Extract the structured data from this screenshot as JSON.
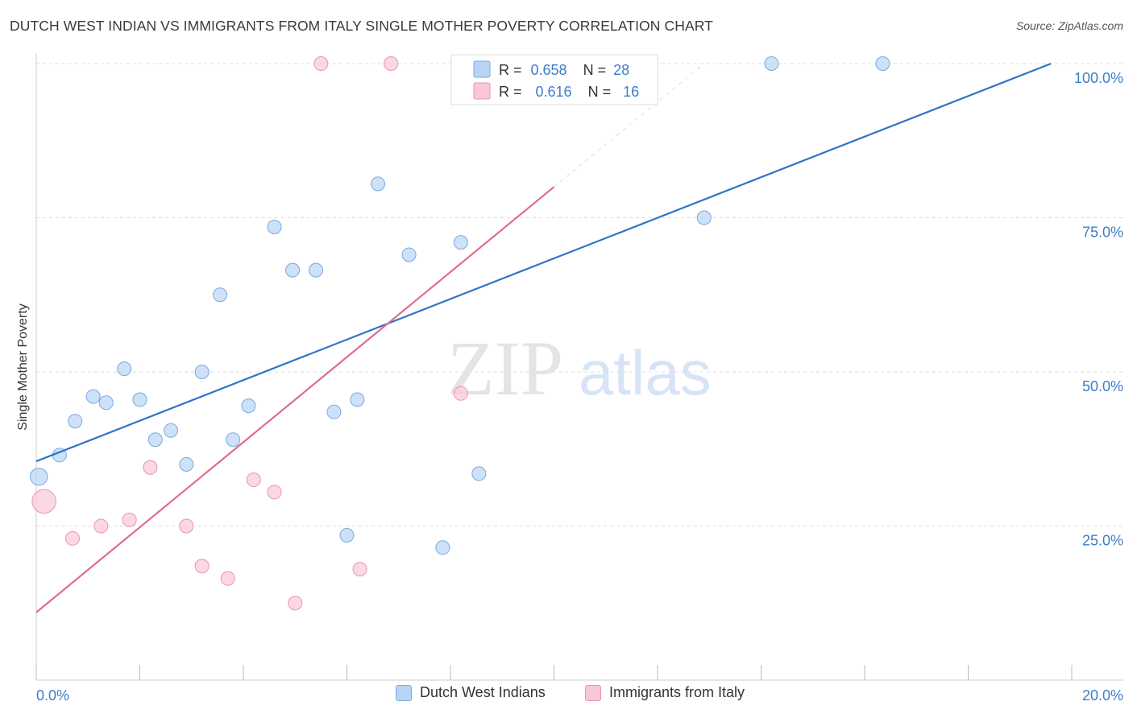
{
  "title": "DUTCH WEST INDIAN VS IMMIGRANTS FROM ITALY SINGLE MOTHER POVERTY CORRELATION CHART",
  "source": "Source: ZipAtlas.com",
  "watermark": {
    "zip": "ZIP",
    "atlas": "atlas"
  },
  "colors": {
    "blue_fill": "#b8d4f5",
    "blue_stroke": "#7aa9df",
    "blue_line": "#2f74c8",
    "pink_fill": "#f9c7d5",
    "pink_stroke": "#e994ae",
    "pink_line": "#e06b93",
    "value_text": "#3f7dc9",
    "grid": "#dcdcdc"
  },
  "legend_top": [
    {
      "r_label": "R = ",
      "r_value": "0.658",
      "n_label": "N = ",
      "n_value": "28"
    },
    {
      "r_label": "R = ",
      "r_value": "0.616",
      "n_label": "N = ",
      "n_value": "16"
    }
  ],
  "legend_bottom": [
    "Dutch West Indians",
    "Immigrants from Italy"
  ],
  "chart_data": {
    "type": "scatter",
    "xlabel": "",
    "ylabel": "Single Mother Poverty",
    "xlim": [
      0,
      20
    ],
    "ylim": [
      0,
      100
    ],
    "x_tick_labels": [
      {
        "value": 0,
        "label": "0.0%"
      },
      {
        "value": 20,
        "label": "20.0%"
      }
    ],
    "y_tick_labels": [
      {
        "value": 100,
        "label": "100.0%"
      },
      {
        "value": 75,
        "label": "75.0%"
      },
      {
        "value": 50,
        "label": "50.0%"
      },
      {
        "value": 25,
        "label": "25.0%"
      }
    ],
    "grid": true,
    "series": [
      {
        "name": "Dutch West Indians",
        "color": "#b8d4f5",
        "points": [
          [
            0.05,
            33.0
          ],
          [
            0.45,
            36.5
          ],
          [
            0.75,
            42.0
          ],
          [
            1.1,
            46.0
          ],
          [
            1.35,
            45.0
          ],
          [
            1.7,
            50.5
          ],
          [
            2.0,
            45.5
          ],
          [
            2.3,
            39.0
          ],
          [
            2.6,
            40.5
          ],
          [
            2.9,
            35.0
          ],
          [
            3.2,
            50.0
          ],
          [
            3.55,
            62.5
          ],
          [
            3.8,
            39.0
          ],
          [
            4.1,
            44.5
          ],
          [
            4.6,
            73.5
          ],
          [
            4.95,
            66.5
          ],
          [
            5.4,
            66.5
          ],
          [
            5.75,
            43.5
          ],
          [
            6.0,
            23.5
          ],
          [
            6.2,
            45.5
          ],
          [
            6.6,
            80.5
          ],
          [
            7.2,
            69.0
          ],
          [
            7.85,
            21.5
          ],
          [
            8.2,
            71.0
          ],
          [
            8.55,
            33.5
          ],
          [
            12.9,
            75.0
          ],
          [
            14.2,
            100.0
          ],
          [
            16.35,
            100.0
          ]
        ],
        "sizes": [
          1.6,
          1,
          1,
          1,
          1,
          1,
          1,
          1,
          1,
          1,
          1,
          1,
          1,
          1,
          1,
          1,
          1,
          1,
          1,
          1,
          1,
          1,
          1,
          1,
          1,
          1,
          1,
          1
        ],
        "trend": {
          "x": [
            0,
            19.6
          ],
          "y": [
            35.5,
            100.0
          ]
        }
      },
      {
        "name": "Immigrants from Italy",
        "color": "#f9c7d5",
        "points": [
          [
            0.15,
            29.0
          ],
          [
            0.7,
            23.0
          ],
          [
            1.25,
            25.0
          ],
          [
            1.8,
            26.0
          ],
          [
            2.2,
            34.5
          ],
          [
            2.9,
            25.0
          ],
          [
            3.2,
            18.5
          ],
          [
            3.7,
            16.5
          ],
          [
            4.2,
            32.5
          ],
          [
            4.6,
            30.5
          ],
          [
            5.0,
            12.5
          ],
          [
            5.5,
            100.0
          ],
          [
            6.25,
            18.0
          ],
          [
            6.85,
            100.0
          ],
          [
            8.2,
            46.5
          ],
          [
            9.9,
            100.0
          ]
        ],
        "sizes": [
          3,
          1,
          1,
          1,
          1,
          1,
          1,
          1,
          1,
          1,
          1,
          1,
          1,
          1,
          1,
          1
        ],
        "trend": {
          "x": [
            0,
            10.0
          ],
          "y": [
            11.0,
            80.0
          ]
        },
        "trend_extension": {
          "x": [
            10.0,
            12.9
          ],
          "y": [
            80.0,
            100.0
          ]
        }
      }
    ]
  }
}
